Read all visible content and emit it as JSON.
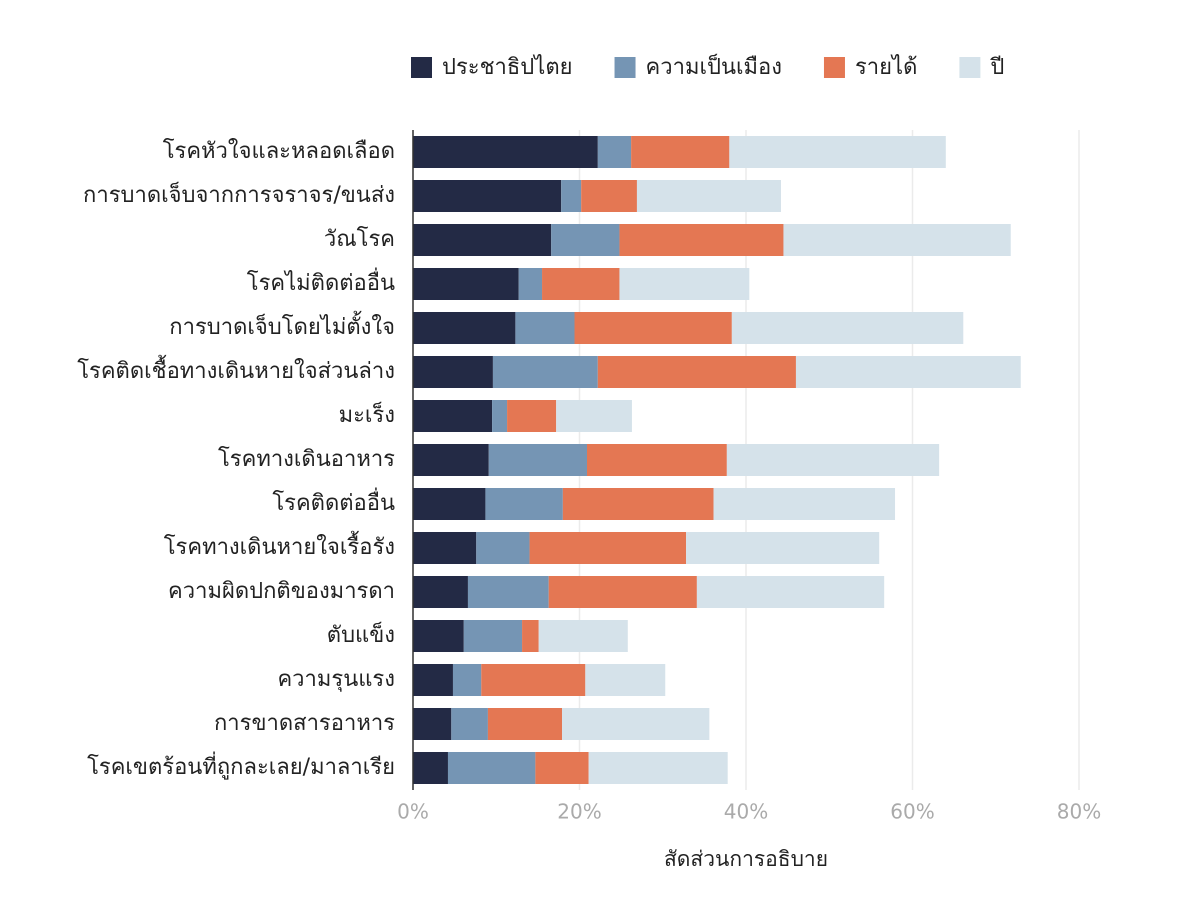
{
  "chart_data": {
    "type": "stacked-barh",
    "x_label": "สัดส่วนการอธิบาย",
    "categories": [
      "โรคหัวใจและหลอดเลือด",
      "การบาดเจ็บจากการจราจร/ขนส่ง",
      "วัณโรค",
      "โรคไม่ติดต่ออื่น",
      "การบาดเจ็บโดยไม่ตั้งใจ",
      "โรคติดเชื้อทางเดินหายใจส่วนล่าง",
      "มะเร็ง",
      "โรคทางเดินอาหาร",
      "โรคติดต่ออื่น",
      "โรคทางเดินหายใจเรื้อรัง",
      "ความผิดปกติของมารดา",
      "ตับแข็ง",
      "ความรุนแรง",
      "การขาดสารอาหาร",
      "โรคเขตร้อนที่ถูกละเลย/มาลาเรีย"
    ],
    "series": [
      {
        "name": "ประชาธิปไตย",
        "color": "#232a45",
        "values": [
          22.2,
          17.8,
          16.6,
          12.7,
          12.3,
          9.6,
          9.5,
          9.1,
          8.7,
          7.6,
          6.6,
          6.1,
          4.8,
          4.6,
          4.2
        ]
      },
      {
        "name": "ความเป็นเมือง",
        "color": "#7595b4",
        "values": [
          4.0,
          2.4,
          8.2,
          2.8,
          7.1,
          12.6,
          1.8,
          11.8,
          9.3,
          6.4,
          9.7,
          7.0,
          3.4,
          4.4,
          10.5
        ]
      },
      {
        "name": "รายได้",
        "color": "#e47753",
        "values": [
          11.8,
          6.7,
          19.7,
          9.3,
          18.9,
          23.8,
          5.9,
          16.8,
          18.1,
          18.8,
          17.8,
          2.0,
          12.5,
          8.9,
          6.4
        ]
      },
      {
        "name": "ปี",
        "color": "#d5e2ea",
        "values": [
          26.0,
          17.3,
          27.3,
          15.6,
          27.8,
          27.0,
          9.1,
          25.5,
          21.8,
          23.2,
          22.5,
          10.7,
          9.6,
          17.7,
          16.7
        ]
      }
    ],
    "xlim": [
      0,
      80
    ],
    "xticks": [
      {
        "value": 0,
        "label": "0%"
      },
      {
        "value": 20,
        "label": "20%"
      },
      {
        "value": 40,
        "label": "40%"
      },
      {
        "value": 60,
        "label": "60%"
      },
      {
        "value": 80,
        "label": "80%"
      }
    ],
    "grid": true
  }
}
